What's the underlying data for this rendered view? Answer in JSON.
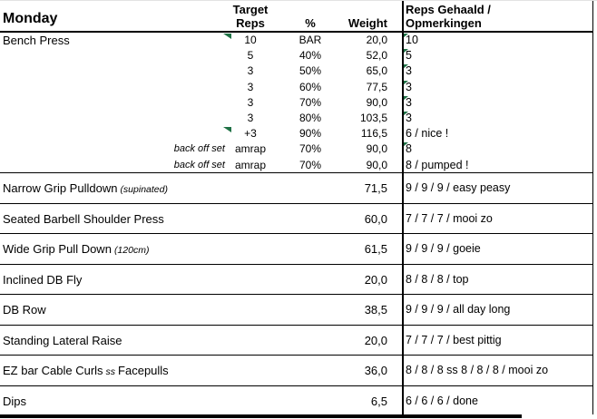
{
  "colors": {
    "indicator_green": "#1f7145",
    "border": "#000000"
  },
  "header": {
    "day_title": "Monday",
    "target_line1": "Target",
    "target_line2": "Reps",
    "pct": "%",
    "weight": "Weight",
    "result_line1": "Reps Gehaald /",
    "result_line2": "Opmerkingen"
  },
  "bench": {
    "name": "Bench Press",
    "sets": [
      {
        "label": "",
        "reps": "10",
        "pct": "BAR",
        "weight": "20,0",
        "result": "10",
        "comment_flag": true,
        "result_flag": true
      },
      {
        "label": "",
        "reps": "5",
        "pct": "40%",
        "weight": "52,0",
        "result": "5",
        "comment_flag": false,
        "result_flag": true
      },
      {
        "label": "",
        "reps": "3",
        "pct": "50%",
        "weight": "65,0",
        "result": "3",
        "comment_flag": false,
        "result_flag": true
      },
      {
        "label": "",
        "reps": "3",
        "pct": "60%",
        "weight": "77,5",
        "result": "3",
        "comment_flag": false,
        "result_flag": true
      },
      {
        "label": "",
        "reps": "3",
        "pct": "70%",
        "weight": "90,0",
        "result": "3",
        "comment_flag": false,
        "result_flag": true
      },
      {
        "label": "",
        "reps": "3",
        "pct": "80%",
        "weight": "103,5",
        "result": "3",
        "comment_flag": false,
        "result_flag": true
      },
      {
        "label": "",
        "reps": "+3",
        "pct": "90%",
        "weight": "116,5",
        "result": "6 / nice !",
        "comment_flag": true,
        "result_flag": false
      },
      {
        "label": "back off set",
        "reps": "amrap",
        "pct": "70%",
        "weight": "90,0",
        "result": "8",
        "comment_flag": false,
        "result_flag": true
      },
      {
        "label": "back off set",
        "reps": "amrap",
        "pct": "70%",
        "weight": "90,0",
        "result": "8 / pumped !",
        "comment_flag": false,
        "result_flag": false
      }
    ]
  },
  "exercises": [
    {
      "name": "Narrow Grip Pulldown",
      "note": "(supinated)",
      "suffix": "",
      "weight": "71,5",
      "result": "9 / 9 / 9 / easy peasy"
    },
    {
      "name": "Seated Barbell Shoulder Press",
      "note": "",
      "suffix": "",
      "weight": "60,0",
      "result": "7 / 7 / 7 / mooi zo"
    },
    {
      "name": "Wide Grip Pull Down",
      "note": "(120cm)",
      "suffix": "",
      "weight": "61,5",
      "result": "9 / 9 / 9 / goeie"
    },
    {
      "name": "Inclined DB Fly",
      "note": "",
      "suffix": "",
      "weight": "20,0",
      "result": "8 / 8 / 8 / top"
    },
    {
      "name": "DB Row",
      "note": "",
      "suffix": "",
      "weight": "38,5",
      "result": "9 / 9 / 9 / all day long"
    },
    {
      "name": "Standing Lateral Raise",
      "note": "",
      "suffix": "",
      "weight": "20,0",
      "result": "7 / 7 / 7 / best pittig"
    },
    {
      "name": "EZ bar Cable Curls",
      "note": "ss",
      "suffix": "Facepulls",
      "weight": "36,0",
      "result": "8 / 8 / 8 ss 8 / 8 / 8 / mooi zo"
    },
    {
      "name": "Dips",
      "note": "",
      "suffix": "",
      "weight": "6,5",
      "result": "6 / 6 / 6 / done"
    }
  ]
}
